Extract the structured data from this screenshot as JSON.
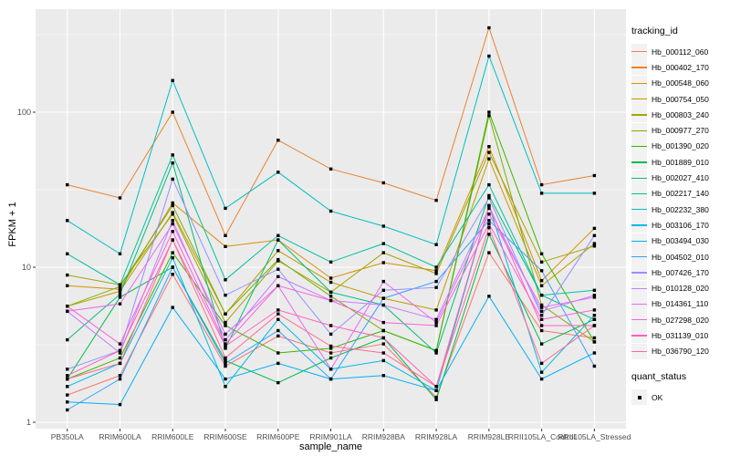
{
  "figure": {
    "y_axis_title": "FPKM + 1",
    "x_axis_title": "sample_name",
    "legend_tracking_title": "tracking_id",
    "legend_quant_title": "quant_status",
    "quant_ok_label": "OK",
    "colors": {
      "panel_bg": "#EBEBEB",
      "gridline": "#FFFFFF",
      "tick_text": "#4D4D4D",
      "axis_tick": "#333333",
      "legend_key_bg": "#F2F2F2",
      "point": "#000000"
    }
  },
  "chart_data": {
    "type": "line",
    "scale_y": "log10",
    "grid": "on",
    "legend_position": "right",
    "ylim": [
      1,
      460
    ],
    "yticks": [
      1,
      10,
      100
    ],
    "ytick_labels": [
      "1",
      "10",
      "100"
    ],
    "minor_yticks": [
      3.162,
      31.623,
      316.23
    ],
    "title": "",
    "xlabel": "sample_name",
    "ylabel": "FPKM + 1",
    "marker": "filled-black-square (quant_status = OK)",
    "categories": [
      "PB350LA",
      "RRIM600LA",
      "RRIM600LE",
      "RRIM600SE",
      "RRIM600PE",
      "RRIM901LA",
      "RRIM928BA",
      "RRIM928LA",
      "RRIM928LE",
      "RRII105LA_Control",
      "RRII105LA_Stressed"
    ],
    "series": [
      {
        "name": "Hb_000112_060",
        "color": "#F8766D",
        "values": [
          1.5,
          2.0,
          9.0,
          2.3,
          3.6,
          2.8,
          3.2,
          1.45,
          12.4,
          3.9,
          3.5
        ]
      },
      {
        "name": "Hb_000402_170",
        "color": "#EA8331",
        "values": [
          34,
          28,
          100,
          16,
          66,
          43,
          35,
          27,
          350,
          34,
          39
        ]
      },
      {
        "name": "Hb_000548_060",
        "color": "#D89000",
        "values": [
          7.6,
          7.2,
          26,
          13.6,
          15,
          8.5,
          10.7,
          9.5,
          60,
          8.2,
          17.8
        ]
      },
      {
        "name": "Hb_000754_050",
        "color": "#C09B00",
        "values": [
          5.6,
          7.0,
          22.5,
          5.0,
          12.8,
          8.0,
          6.3,
          5.3,
          50,
          7.6,
          14.2
        ]
      },
      {
        "name": "Hb_000803_240",
        "color": "#A3A500",
        "values": [
          8.9,
          7.7,
          22,
          4.4,
          11,
          6.9,
          12.4,
          9.1,
          55,
          10.8,
          13.7
        ]
      },
      {
        "name": "Hb_000977_270",
        "color": "#7CAE00",
        "values": [
          5.6,
          7.5,
          25,
          5.0,
          11.2,
          6.5,
          3.9,
          2.9,
          95,
          5.7,
          3.3
        ]
      },
      {
        "name": "Hb_001390_020",
        "color": "#39B600",
        "values": [
          1.9,
          2.6,
          12.4,
          4.2,
          2.8,
          3.0,
          3.9,
          2.9,
          100,
          12.2,
          3.3
        ]
      },
      {
        "name": "Hb_001889_010",
        "color": "#00BB4E",
        "values": [
          1.9,
          6.4,
          10,
          2.5,
          1.8,
          2.6,
          3.5,
          1.4,
          16.3,
          3.2,
          4.6
        ]
      },
      {
        "name": "Hb_002027_410",
        "color": "#00BF7D",
        "values": [
          3.4,
          6.7,
          47,
          3.0,
          15,
          6.9,
          5.7,
          2.8,
          29,
          6.6,
          4.6
        ]
      },
      {
        "name": "Hb_002217_140",
        "color": "#00C1A3",
        "values": [
          12.2,
          7.7,
          53,
          8.3,
          16,
          10.8,
          14.2,
          10,
          34,
          6.6,
          7.1
        ]
      },
      {
        "name": "Hb_002232_380",
        "color": "#00BFC4",
        "values": [
          20,
          12.2,
          160,
          24,
          41,
          23,
          18.4,
          14,
          230,
          30,
          30
        ]
      },
      {
        "name": "Hb_003106_170",
        "color": "#00BAE0",
        "values": [
          1.7,
          2.4,
          11.5,
          1.7,
          4.6,
          2.2,
          2.5,
          1.6,
          25,
          2.1,
          4.9
        ]
      },
      {
        "name": "Hb_003494_030",
        "color": "#00B0F6",
        "values": [
          1.35,
          1.3,
          5.5,
          1.9,
          2.4,
          1.9,
          2.0,
          1.6,
          6.5,
          1.9,
          2.8
        ]
      },
      {
        "name": "Hb_004502_010",
        "color": "#35A2FF",
        "values": [
          1.2,
          1.9,
          10,
          2.4,
          3.9,
          1.9,
          6.3,
          8.1,
          20,
          9.5,
          2.3
        ]
      },
      {
        "name": "Hb_007426_170",
        "color": "#9590FF",
        "values": [
          2.2,
          2.9,
          37,
          6.6,
          9.7,
          3.7,
          7.1,
          7.4,
          28,
          4.9,
          16
        ]
      },
      {
        "name": "Hb_010128_020",
        "color": "#C77CFF",
        "values": [
          5.2,
          2.8,
          20,
          3.4,
          8.7,
          6.1,
          5.7,
          4.6,
          24,
          5.2,
          6.6
        ]
      },
      {
        "name": "Hb_014361_110",
        "color": "#E76BF3",
        "values": [
          5.2,
          5.8,
          19,
          3.7,
          7.6,
          2.2,
          8.1,
          4.4,
          22,
          5.5,
          6.4
        ]
      },
      {
        "name": "Hb_027298_020",
        "color": "#FA62DB",
        "values": [
          5.6,
          3.2,
          17,
          3.2,
          7.6,
          6.1,
          4.4,
          4.2,
          19,
          4.6,
          5.3
        ]
      },
      {
        "name": "Hb_031139_010",
        "color": "#FF62BC",
        "values": [
          2.0,
          2.9,
          15,
          3.1,
          5.3,
          4.2,
          3.5,
          1.7,
          25,
          4.2,
          4.2
        ]
      },
      {
        "name": "Hb_036790_120",
        "color": "#FF6A98",
        "values": [
          1.9,
          2.4,
          15,
          2.6,
          5.0,
          3.1,
          2.8,
          1.7,
          18,
          2.4,
          4.2
        ]
      }
    ]
  }
}
